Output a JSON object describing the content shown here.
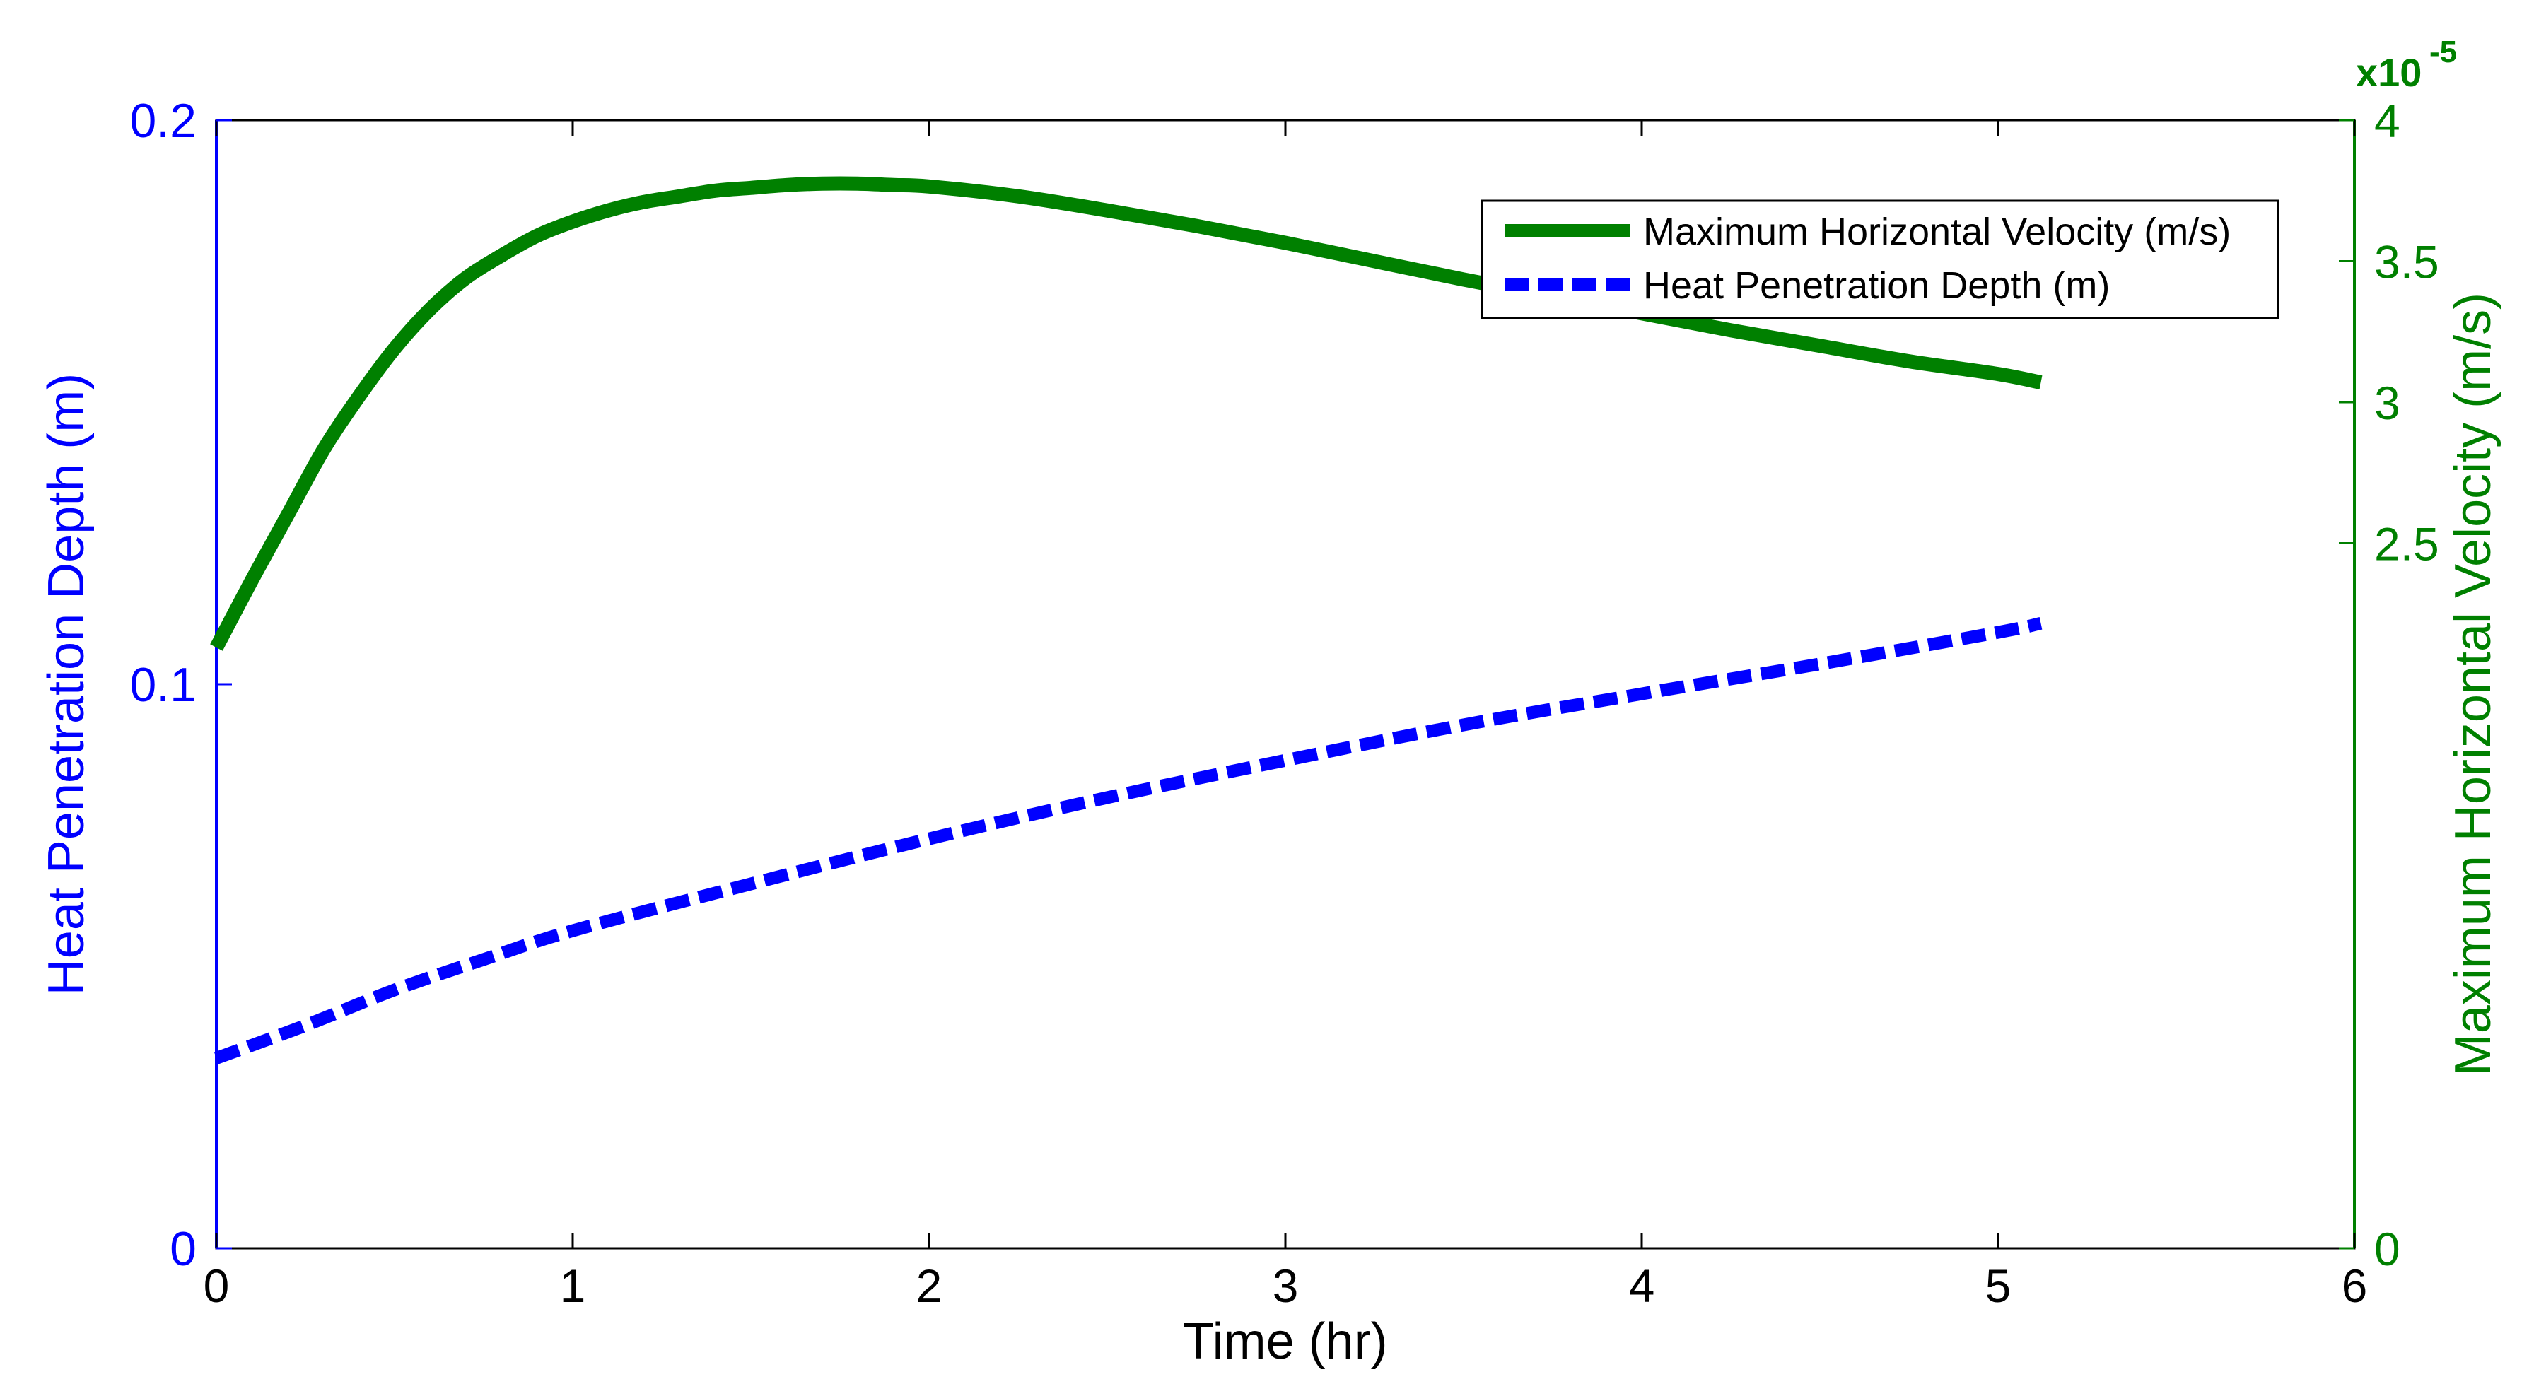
{
  "chart_data": {
    "type": "line",
    "title": "",
    "xlabel": "Time (hr)",
    "ylabel_left": "Heat Penetration Depth (m)",
    "ylabel_right": "Maximum Horizontal Velocity (m/s)",
    "xlim": [
      0,
      6
    ],
    "ylim_left": [
      0,
      0.2
    ],
    "ylim_right": [
      0,
      4
    ],
    "xticks": [
      "0",
      "1",
      "2",
      "3",
      "4",
      "5",
      "6"
    ],
    "yticks_left": [
      "0",
      "0.1",
      "0.2"
    ],
    "yticks_right": [
      "0",
      "2.5",
      "3",
      "3.5",
      "4"
    ],
    "right_axis_exponent": {
      "base": "x10",
      "power": "-5"
    },
    "grid": false,
    "legend_position": "top-right",
    "colors": {
      "left_axis": "#0000ff",
      "right_axis": "#008000",
      "frame": "#000000"
    },
    "series": [
      {
        "name": "Maximum Horizontal Velocity (m/s)",
        "axis": "right",
        "style": "solid",
        "color": "#008000",
        "x": [
          0,
          0.1,
          0.2,
          0.3,
          0.4,
          0.5,
          0.6,
          0.7,
          0.8,
          0.9,
          1.0,
          1.1,
          1.2,
          1.3,
          1.4,
          1.5,
          1.6,
          1.7,
          1.8,
          1.9,
          2.0,
          2.25,
          2.5,
          2.75,
          3.0,
          3.25,
          3.5,
          3.75,
          4.0,
          4.25,
          4.5,
          4.75,
          5.0,
          5.12
        ],
        "y": [
          2.13,
          2.37,
          2.6,
          2.83,
          3.02,
          3.19,
          3.33,
          3.44,
          3.52,
          3.59,
          3.64,
          3.68,
          3.71,
          3.73,
          3.75,
          3.76,
          3.77,
          3.775,
          3.775,
          3.77,
          3.765,
          3.73,
          3.68,
          3.625,
          3.565,
          3.5,
          3.435,
          3.375,
          3.315,
          3.255,
          3.2,
          3.145,
          3.1,
          3.07
        ]
      },
      {
        "name": "Heat Penetration Depth (m)",
        "axis": "left",
        "style": "dashed",
        "color": "#0000ff",
        "x": [
          0,
          0.25,
          0.5,
          0.75,
          1.0,
          1.5,
          2.0,
          2.5,
          3.0,
          3.5,
          4.0,
          4.5,
          5.0,
          5.12
        ],
        "y": [
          0.0337,
          0.0395,
          0.0458,
          0.0512,
          0.0563,
          0.0646,
          0.0726,
          0.0799,
          0.0865,
          0.0928,
          0.0983,
          0.1036,
          0.1092,
          0.1108
        ]
      }
    ]
  }
}
